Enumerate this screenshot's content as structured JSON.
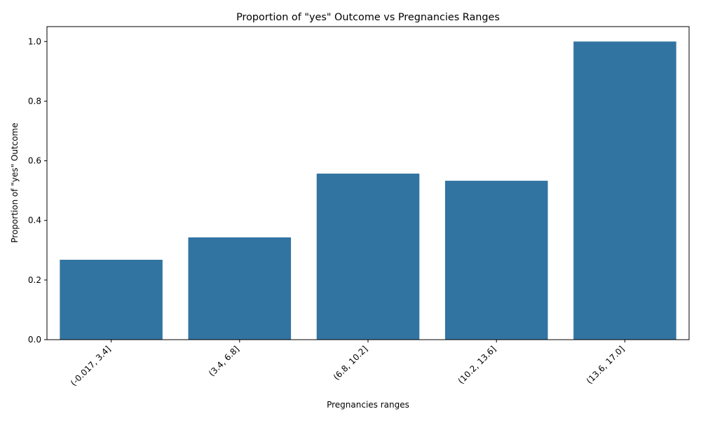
{
  "chart_data": {
    "type": "bar",
    "title": "Proportion of \"yes\" Outcome vs Pregnancies Ranges",
    "xlabel": "Pregnancies ranges",
    "ylabel": "Proportion of \"yes\" Outcome",
    "categories": [
      "(-0.017, 3.4]",
      "(3.4, 6.8]",
      "(6.8, 10.2]",
      "(10.2, 13.6]",
      "(13.6, 17.0]"
    ],
    "values": [
      0.268,
      0.343,
      0.557,
      0.533,
      1.0
    ],
    "ylim": [
      0,
      1.05
    ],
    "yticks": [
      "0.0",
      "0.2",
      "0.4",
      "0.6",
      "0.8",
      "1.0"
    ],
    "grid": false,
    "colors": {
      "bar": "#3274a1",
      "axis": "#000000",
      "background": "#ffffff"
    }
  }
}
